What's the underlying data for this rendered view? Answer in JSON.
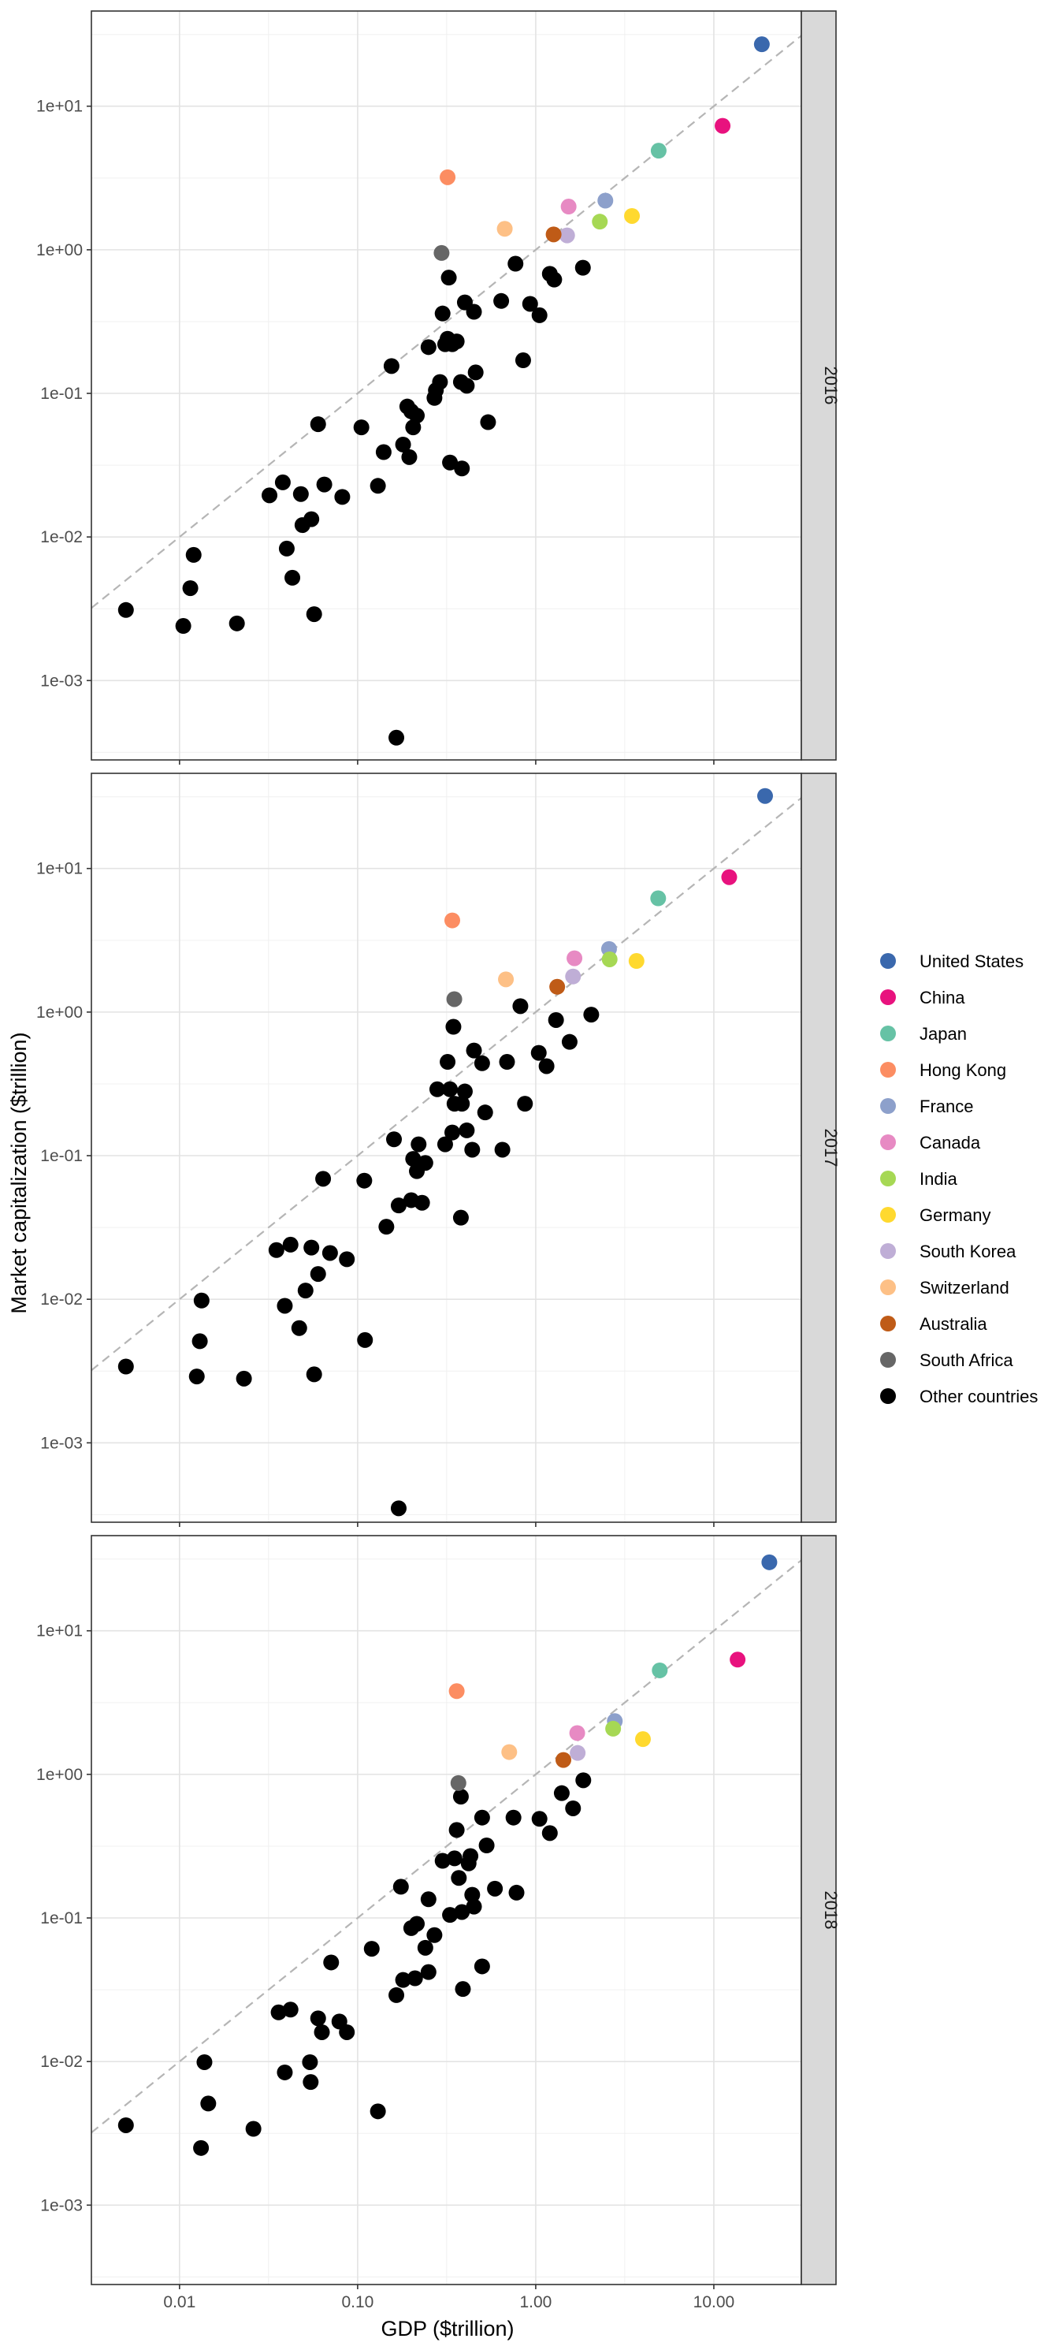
{
  "chart_data": {
    "type": "scatter",
    "xlabel": "GDP ($trillion)",
    "ylabel": "Market capitalization ($trillion)",
    "x_scale": "log10",
    "y_scale": "log10",
    "x_ticks": [
      0.01,
      0.1,
      1,
      10
    ],
    "x_tick_labels": [
      "0.01",
      "0.10",
      "1.00",
      "10.00"
    ],
    "y_ticks": [
      0.001,
      0.01,
      0.1,
      1,
      10
    ],
    "y_tick_labels": [
      "1e-03",
      "1e-02",
      "1e-01",
      "1e+00",
      "1e+01"
    ],
    "xlim": [
      0.0032,
      31
    ],
    "ylim": [
      0.00028,
      46
    ],
    "grid": true,
    "reference_line": "dashed y = x",
    "facet_by": "year",
    "legend_position": "right",
    "legend": [
      {
        "name": "United States",
        "color": "#3a68ad"
      },
      {
        "name": "China",
        "color": "#e8127e"
      },
      {
        "name": "Japan",
        "color": "#66c2a5"
      },
      {
        "name": "Hong Kong",
        "color": "#fc8d62"
      },
      {
        "name": "France",
        "color": "#8da0cb"
      },
      {
        "name": "Canada",
        "color": "#e78ac3"
      },
      {
        "name": "India",
        "color": "#a6d854"
      },
      {
        "name": "Germany",
        "color": "#ffd92f"
      },
      {
        "name": "South Korea",
        "color": "#bfaed6"
      },
      {
        "name": "Switzerland",
        "color": "#fdc086"
      },
      {
        "name": "Australia",
        "color": "#bf5b17"
      },
      {
        "name": "South Africa",
        "color": "#666666"
      },
      {
        "name": "Other countries",
        "color": "#000000"
      }
    ],
    "panels": [
      {
        "label": "2016",
        "highlighted": [
          {
            "series": "United States",
            "x": 18.6,
            "y": 27
          },
          {
            "series": "China",
            "x": 11.2,
            "y": 7.3
          },
          {
            "series": "Japan",
            "x": 4.9,
            "y": 4.9
          },
          {
            "series": "Hong Kong",
            "x": 0.32,
            "y": 3.2
          },
          {
            "series": "France",
            "x": 2.46,
            "y": 2.2
          },
          {
            "series": "Canada",
            "x": 1.53,
            "y": 2.0
          },
          {
            "series": "India",
            "x": 2.29,
            "y": 1.57
          },
          {
            "series": "Germany",
            "x": 3.47,
            "y": 1.72
          },
          {
            "series": "South Korea",
            "x": 1.5,
            "y": 1.26
          },
          {
            "series": "Switzerland",
            "x": 0.67,
            "y": 1.4
          },
          {
            "series": "Australia",
            "x": 1.26,
            "y": 1.28
          },
          {
            "series": "South Africa",
            "x": 0.296,
            "y": 0.95
          }
        ],
        "other": [
          [
            0.005,
            0.0031
          ],
          [
            0.0105,
            0.0024
          ],
          [
            0.0115,
            0.0044
          ],
          [
            0.012,
            0.0075
          ],
          [
            0.021,
            0.0025
          ],
          [
            0.032,
            0.0195
          ],
          [
            0.038,
            0.024
          ],
          [
            0.04,
            0.0083
          ],
          [
            0.043,
            0.0052
          ],
          [
            0.048,
            0.0199
          ],
          [
            0.049,
            0.0121
          ],
          [
            0.055,
            0.0133
          ],
          [
            0.057,
            0.0029
          ],
          [
            0.06,
            0.061
          ],
          [
            0.065,
            0.0232
          ],
          [
            0.082,
            0.019
          ],
          [
            0.105,
            0.058
          ],
          [
            0.13,
            0.0227
          ],
          [
            0.14,
            0.039
          ],
          [
            0.155,
            0.155
          ],
          [
            0.165,
            0.0004
          ],
          [
            0.18,
            0.044
          ],
          [
            0.19,
            0.081
          ],
          [
            0.195,
            0.036
          ],
          [
            0.2,
            0.075
          ],
          [
            0.205,
            0.058
          ],
          [
            0.215,
            0.07
          ],
          [
            0.25,
            0.21
          ],
          [
            0.27,
            0.093
          ],
          [
            0.275,
            0.105
          ],
          [
            0.29,
            0.12
          ],
          [
            0.3,
            0.36
          ],
          [
            0.31,
            0.22
          ],
          [
            0.32,
            0.24
          ],
          [
            0.325,
            0.64
          ],
          [
            0.33,
            0.033
          ],
          [
            0.34,
            0.22
          ],
          [
            0.36,
            0.23
          ],
          [
            0.38,
            0.12
          ],
          [
            0.385,
            0.03
          ],
          [
            0.4,
            0.43
          ],
          [
            0.41,
            0.113
          ],
          [
            0.45,
            0.37
          ],
          [
            0.46,
            0.14
          ],
          [
            0.54,
            0.063
          ],
          [
            0.64,
            0.44
          ],
          [
            0.77,
            0.8
          ],
          [
            0.85,
            0.17
          ],
          [
            0.93,
            0.42
          ],
          [
            1.05,
            0.35
          ],
          [
            1.2,
            0.68
          ],
          [
            1.27,
            0.62
          ],
          [
            1.84,
            0.75
          ]
        ]
      },
      {
        "label": "2017",
        "highlighted": [
          {
            "series": "United States",
            "x": 19.4,
            "y": 32
          },
          {
            "series": "China",
            "x": 12.2,
            "y": 8.7
          },
          {
            "series": "Japan",
            "x": 4.87,
            "y": 6.2
          },
          {
            "series": "Hong Kong",
            "x": 0.34,
            "y": 4.35
          },
          {
            "series": "France",
            "x": 2.58,
            "y": 2.75
          },
          {
            "series": "Canada",
            "x": 1.65,
            "y": 2.37
          },
          {
            "series": "India",
            "x": 2.6,
            "y": 2.33
          },
          {
            "series": "Germany",
            "x": 3.68,
            "y": 2.27
          },
          {
            "series": "South Korea",
            "x": 1.62,
            "y": 1.77
          },
          {
            "series": "Switzerland",
            "x": 0.68,
            "y": 1.69
          },
          {
            "series": "Australia",
            "x": 1.32,
            "y": 1.5
          },
          {
            "series": "South Africa",
            "x": 0.349,
            "y": 1.23
          }
        ],
        "other": [
          [
            0.005,
            0.0034
          ],
          [
            0.0125,
            0.0029
          ],
          [
            0.013,
            0.0051
          ],
          [
            0.0133,
            0.0098
          ],
          [
            0.023,
            0.0028
          ],
          [
            0.035,
            0.022
          ],
          [
            0.039,
            0.009
          ],
          [
            0.042,
            0.024
          ],
          [
            0.047,
            0.0063
          ],
          [
            0.051,
            0.0115
          ],
          [
            0.055,
            0.0229
          ],
          [
            0.057,
            0.003
          ],
          [
            0.06,
            0.015
          ],
          [
            0.064,
            0.069
          ],
          [
            0.07,
            0.021
          ],
          [
            0.087,
            0.019
          ],
          [
            0.109,
            0.067
          ],
          [
            0.11,
            0.0052
          ],
          [
            0.145,
            0.032
          ],
          [
            0.16,
            0.13
          ],
          [
            0.17,
            0.00035
          ],
          [
            0.17,
            0.045
          ],
          [
            0.2,
            0.049
          ],
          [
            0.205,
            0.095
          ],
          [
            0.215,
            0.078
          ],
          [
            0.22,
            0.12
          ],
          [
            0.23,
            0.047
          ],
          [
            0.24,
            0.089
          ],
          [
            0.28,
            0.29
          ],
          [
            0.31,
            0.12
          ],
          [
            0.32,
            0.45
          ],
          [
            0.33,
            0.29
          ],
          [
            0.34,
            0.145
          ],
          [
            0.345,
            0.79
          ],
          [
            0.35,
            0.23
          ],
          [
            0.38,
            0.037
          ],
          [
            0.385,
            0.23
          ],
          [
            0.4,
            0.28
          ],
          [
            0.41,
            0.15
          ],
          [
            0.44,
            0.11
          ],
          [
            0.45,
            0.54
          ],
          [
            0.5,
            0.44
          ],
          [
            0.52,
            0.2
          ],
          [
            0.65,
            0.11
          ],
          [
            0.69,
            0.45
          ],
          [
            0.82,
            1.1
          ],
          [
            0.87,
            0.23
          ],
          [
            1.04,
            0.52
          ],
          [
            1.15,
            0.42
          ],
          [
            1.3,
            0.88
          ],
          [
            1.55,
            0.62
          ],
          [
            2.05,
            0.96
          ]
        ]
      },
      {
        "label": "2018",
        "highlighted": [
          {
            "series": "United States",
            "x": 20.5,
            "y": 30
          },
          {
            "series": "China",
            "x": 13.6,
            "y": 6.3
          },
          {
            "series": "Japan",
            "x": 4.97,
            "y": 5.3
          },
          {
            "series": "Hong Kong",
            "x": 0.36,
            "y": 3.8
          },
          {
            "series": "France",
            "x": 2.78,
            "y": 2.35
          },
          {
            "series": "Canada",
            "x": 1.71,
            "y": 1.94
          },
          {
            "series": "India",
            "x": 2.72,
            "y": 2.08
          },
          {
            "series": "Germany",
            "x": 4.0,
            "y": 1.76
          },
          {
            "series": "South Korea",
            "x": 1.72,
            "y": 1.41
          },
          {
            "series": "Switzerland",
            "x": 0.71,
            "y": 1.43
          },
          {
            "series": "Australia",
            "x": 1.43,
            "y": 1.26
          },
          {
            "series": "South Africa",
            "x": 0.368,
            "y": 0.87
          }
        ],
        "other": [
          [
            0.005,
            0.0036
          ],
          [
            0.0132,
            0.0025
          ],
          [
            0.0138,
            0.0099
          ],
          [
            0.0145,
            0.0051
          ],
          [
            0.026,
            0.0034
          ],
          [
            0.036,
            0.022
          ],
          [
            0.039,
            0.0084
          ],
          [
            0.042,
            0.023
          ],
          [
            0.054,
            0.0099
          ],
          [
            0.0545,
            0.0072
          ],
          [
            0.06,
            0.02
          ],
          [
            0.063,
            0.016
          ],
          [
            0.071,
            0.049
          ],
          [
            0.079,
            0.019
          ],
          [
            0.087,
            0.016
          ],
          [
            0.12,
            0.061
          ],
          [
            0.13,
            0.0045
          ],
          [
            0.165,
            0.029
          ],
          [
            0.175,
            0.165
          ],
          [
            0.18,
            0.037
          ],
          [
            0.2,
            0.085
          ],
          [
            0.21,
            0.038
          ],
          [
            0.215,
            0.091
          ],
          [
            0.24,
            0.062
          ],
          [
            0.25,
            0.135
          ],
          [
            0.25,
            0.042
          ],
          [
            0.27,
            0.076
          ],
          [
            0.3,
            0.25
          ],
          [
            0.33,
            0.105
          ],
          [
            0.35,
            0.26
          ],
          [
            0.36,
            0.41
          ],
          [
            0.37,
            0.19
          ],
          [
            0.38,
            0.7
          ],
          [
            0.385,
            0.11
          ],
          [
            0.39,
            0.032
          ],
          [
            0.42,
            0.24
          ],
          [
            0.43,
            0.27
          ],
          [
            0.44,
            0.145
          ],
          [
            0.45,
            0.12
          ],
          [
            0.5,
            0.5
          ],
          [
            0.5,
            0.046
          ],
          [
            0.53,
            0.32
          ],
          [
            0.59,
            0.16
          ],
          [
            0.75,
            0.5
          ],
          [
            0.78,
            0.15
          ],
          [
            1.05,
            0.49
          ],
          [
            1.2,
            0.39
          ],
          [
            1.4,
            0.74
          ],
          [
            1.62,
            0.58
          ],
          [
            1.85,
            0.91
          ]
        ]
      }
    ]
  }
}
